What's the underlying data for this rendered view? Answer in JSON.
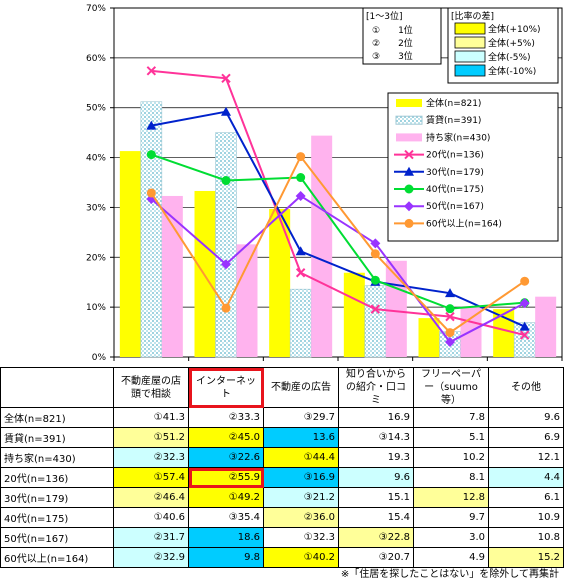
{
  "chart_data": {
    "type": "bar",
    "ylim": [
      0,
      70
    ],
    "ytick_labels": [
      "0%",
      "10%",
      "20%",
      "30%",
      "40%",
      "50%",
      "60%",
      "70%"
    ],
    "categories": [
      "不動産屋の店頭で相談",
      "インターネット",
      "不動産の広告",
      "知り合いからの紹介・口コミ",
      "フリーペーパー（suumo等）",
      "その他"
    ],
    "bar_series": [
      {
        "name": "全体(n=821)",
        "color": "#ffff00",
        "values": [
          41.3,
          33.3,
          29.7,
          16.9,
          7.8,
          9.6
        ]
      },
      {
        "name": "賃貸(n=391)",
        "color": "#cce8ee",
        "pattern": true,
        "values": [
          51.2,
          45.0,
          13.6,
          14.3,
          5.1,
          6.9
        ]
      },
      {
        "name": "持ち家(n=430)",
        "color": "#ffb3ee",
        "values": [
          32.3,
          22.6,
          44.4,
          19.3,
          10.2,
          12.1
        ]
      }
    ],
    "line_series": [
      {
        "name": "20代(n=136)",
        "color": "#ff3399",
        "marker": "x",
        "values": [
          57.4,
          55.9,
          16.9,
          9.6,
          8.1,
          4.4
        ]
      },
      {
        "name": "30代(n=179)",
        "color": "#0022cc",
        "marker": "triangle",
        "values": [
          46.4,
          49.2,
          21.2,
          15.1,
          12.8,
          6.1
        ]
      },
      {
        "name": "40代(n=175)",
        "color": "#00dd33",
        "marker": "circle",
        "values": [
          40.6,
          35.4,
          36.0,
          15.4,
          9.7,
          10.9
        ]
      },
      {
        "name": "50代(n=167)",
        "color": "#9933ff",
        "marker": "diamond",
        "values": [
          31.7,
          18.6,
          32.3,
          22.8,
          3.0,
          10.8
        ]
      },
      {
        "name": "60代以上(n=164)",
        "color": "#ff9933",
        "marker": "circle",
        "values": [
          32.9,
          9.8,
          40.2,
          20.7,
          4.9,
          15.2
        ]
      }
    ],
    "rank_legend": {
      "title": "[1～3位]",
      "items": [
        "①　　1位",
        "②　　2位",
        "③　　3位"
      ]
    },
    "diff_legend": {
      "title": "[比率の差]",
      "items": [
        {
          "label": "全体(+10%)",
          "color": "#ffff00"
        },
        {
          "label": "全体(+5%)",
          "color": "#ffff99"
        },
        {
          "label": "全体(-5%)",
          "color": "#ccffff"
        },
        {
          "label": "全体(-10%)",
          "color": "#00ccff"
        }
      ]
    }
  },
  "table": {
    "headers": [
      "不動産屋の店頭で相談",
      "インターネット",
      "不動産の広告",
      "知り合いからの紹介・口コミ",
      "フリーペーパー（suumo等）",
      "その他"
    ],
    "rows": [
      {
        "label": "全体(n=821)",
        "cells": [
          {
            "t": "①41.3",
            "c": ""
          },
          {
            "t": "②33.3",
            "c": ""
          },
          {
            "t": "③29.7",
            "c": ""
          },
          {
            "t": "16.9",
            "c": ""
          },
          {
            "t": "7.8",
            "c": ""
          },
          {
            "t": "9.6",
            "c": ""
          }
        ]
      },
      {
        "label": "賃貸(n=391)",
        "cells": [
          {
            "t": "①51.2",
            "c": "ly"
          },
          {
            "t": "②45.0",
            "c": "y"
          },
          {
            "t": "13.6",
            "c": "b"
          },
          {
            "t": "③14.3",
            "c": ""
          },
          {
            "t": "5.1",
            "c": ""
          },
          {
            "t": "6.9",
            "c": ""
          }
        ]
      },
      {
        "label": "持ち家(n=430)",
        "cells": [
          {
            "t": "②32.3",
            "c": "lb"
          },
          {
            "t": "③22.6",
            "c": "b"
          },
          {
            "t": "①44.4",
            "c": "y"
          },
          {
            "t": "19.3",
            "c": ""
          },
          {
            "t": "10.2",
            "c": ""
          },
          {
            "t": "12.1",
            "c": ""
          }
        ]
      },
      {
        "label": "20代(n=136)",
        "cells": [
          {
            "t": "①57.4",
            "c": "y"
          },
          {
            "t": "②55.9",
            "c": "y",
            "hl": true
          },
          {
            "t": "③16.9",
            "c": "b"
          },
          {
            "t": "9.6",
            "c": "lb"
          },
          {
            "t": "8.1",
            "c": ""
          },
          {
            "t": "4.4",
            "c": "lb"
          }
        ]
      },
      {
        "label": "30代(n=179)",
        "cells": [
          {
            "t": "②46.4",
            "c": "ly"
          },
          {
            "t": "①49.2",
            "c": "y"
          },
          {
            "t": "③21.2",
            "c": "lb"
          },
          {
            "t": "15.1",
            "c": ""
          },
          {
            "t": "12.8",
            "c": "ly"
          },
          {
            "t": "6.1",
            "c": ""
          }
        ]
      },
      {
        "label": "40代(n=175)",
        "cells": [
          {
            "t": "①40.6",
            "c": ""
          },
          {
            "t": "③35.4",
            "c": ""
          },
          {
            "t": "②36.0",
            "c": "ly"
          },
          {
            "t": "15.4",
            "c": ""
          },
          {
            "t": "9.7",
            "c": ""
          },
          {
            "t": "10.9",
            "c": ""
          }
        ]
      },
      {
        "label": "50代(n=167)",
        "cells": [
          {
            "t": "②31.7",
            "c": "lb"
          },
          {
            "t": "18.6",
            "c": "b"
          },
          {
            "t": "①32.3",
            "c": ""
          },
          {
            "t": "③22.8",
            "c": "ly"
          },
          {
            "t": "3.0",
            "c": ""
          },
          {
            "t": "10.8",
            "c": ""
          }
        ]
      },
      {
        "label": "60代以上(n=164)",
        "cells": [
          {
            "t": "②32.9",
            "c": "lb"
          },
          {
            "t": "9.8",
            "c": "b"
          },
          {
            "t": "①40.2",
            "c": "y"
          },
          {
            "t": "③20.7",
            "c": ""
          },
          {
            "t": "4.9",
            "c": ""
          },
          {
            "t": "15.2",
            "c": "ly"
          }
        ]
      }
    ]
  },
  "footnote": "※「住居を探したことはない」を除外して再集計"
}
